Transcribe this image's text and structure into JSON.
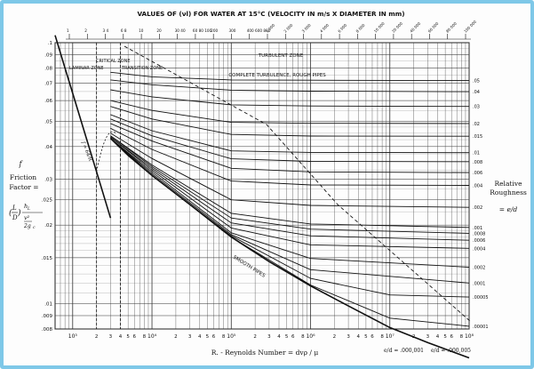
{
  "chart_data": {
    "type": "line",
    "title": "VALUES OF (νl) FOR WATER AT 15°C (VELOCITY IN m/s X DIAMETER IN mm)",
    "top_ticks": [
      "1",
      "2",
      "3 4",
      "6 8",
      "10",
      "20",
      "30 40",
      "60 80 100",
      "200",
      "300",
      "400 600 800",
      "1 000",
      "2 000",
      "3 000",
      "4 000",
      "6 000",
      "8 000",
      "10 000",
      "20 000",
      "40 000",
      "60 000",
      "80 000",
      "100 000"
    ],
    "xlabel": "R. - Reynolds Number = dvρ / μ",
    "x_scale": "log",
    "xlim": [
      600,
      100000000
    ],
    "y_scale": "log",
    "ylim": [
      0.008,
      0.1
    ],
    "y_ticks": [
      ".1",
      ".09",
      ".08",
      ".07",
      ".06",
      ".05",
      ".04",
      ".03",
      ".025",
      ".02",
      ".015",
      ".01",
      ".009",
      ".008"
    ],
    "x_tick_labels": [
      "10³",
      "2",
      "3",
      "4",
      "5",
      "6",
      "8",
      "10⁴",
      "2",
      "3",
      "4",
      "5",
      "6",
      "8",
      "10⁵",
      "2",
      "3",
      "4",
      "5",
      "6",
      "8",
      "10⁶",
      "2",
      "3",
      "4",
      "5",
      "6",
      "8",
      "10⁷",
      "2",
      "3",
      "4",
      "5",
      "6",
      "8",
      "10⁸"
    ],
    "ylabel_left": [
      "f",
      "Friction",
      "Factor ="
    ],
    "ylabel_right": [
      "Relative",
      "Roughness",
      "= e/d"
    ],
    "right_ticks": [
      ".05",
      ".04",
      ".03",
      ".02",
      ".015",
      ".01",
      ".008",
      ".006",
      ".004",
      ".002",
      ".001",
      ".0008",
      ".0006",
      ".0004",
      ".0002",
      ".0001",
      ".00005",
      ".00001"
    ],
    "zones": [
      "LAMINAR ZONE",
      "CRITICAL ZONE",
      "TRANSITION ZONE",
      "TURBULENT ZONE",
      "COMPLETE TURBULENCE, ROUGH PIPES"
    ],
    "curve_labels": [
      "SMOOTH PIPES",
      "f = 64/R"
    ],
    "bottom_annotations": [
      "e/d = .000,001",
      "e/d = .000,005"
    ],
    "series": [
      {
        "name": "f = 64/R",
        "x": [
          600,
          800,
          1000,
          1500,
          2000,
          2500,
          3000
        ],
        "y": [
          0.1067,
          0.08,
          0.064,
          0.0427,
          0.032,
          0.0256,
          0.0213
        ]
      },
      {
        "name": "SMOOTH PIPES",
        "x": [
          3000,
          5000,
          10000,
          30000,
          100000,
          300000,
          1000000,
          3000000,
          10000000,
          30000000,
          100000000
        ],
        "y": [
          0.043,
          0.037,
          0.031,
          0.024,
          0.018,
          0.0145,
          0.0117,
          0.0098,
          0.0081,
          0.0071,
          0.0062
        ]
      },
      {
        "name": ".05",
        "x": [
          3000,
          10000,
          100000,
          1000000,
          100000000
        ],
        "y": [
          0.077,
          0.074,
          0.072,
          0.0718,
          0.0716
        ]
      },
      {
        "name": ".04",
        "x": [
          3000,
          10000,
          100000,
          1000000,
          100000000
        ],
        "y": [
          0.072,
          0.069,
          0.0658,
          0.0652,
          0.0649
        ]
      },
      {
        "name": ".03",
        "x": [
          3000,
          10000,
          100000,
          1000000,
          100000000
        ],
        "y": [
          0.066,
          0.062,
          0.0578,
          0.0572,
          0.057
        ]
      },
      {
        "name": ".02",
        "x": [
          3000,
          10000,
          100000,
          1000000,
          100000000
        ],
        "y": [
          0.06,
          0.055,
          0.0495,
          0.0491,
          0.049
        ]
      },
      {
        "name": ".015",
        "x": [
          3000,
          10000,
          100000,
          1000000,
          100000000
        ],
        "y": [
          0.057,
          0.051,
          0.0445,
          0.0439,
          0.0438
        ]
      },
      {
        "name": ".01",
        "x": [
          3000,
          10000,
          100000,
          1000000,
          100000000
        ],
        "y": [
          0.053,
          0.046,
          0.0385,
          0.038,
          0.0379
        ]
      },
      {
        "name": ".008",
        "x": [
          3000,
          10000,
          100000,
          1000000,
          100000000
        ],
        "y": [
          0.051,
          0.044,
          0.0359,
          0.0351,
          0.035
        ]
      },
      {
        "name": ".006",
        "x": [
          3000,
          10000,
          100000,
          1000000,
          100000000
        ],
        "y": [
          0.049,
          0.042,
          0.033,
          0.032,
          0.0318
        ]
      },
      {
        "name": ".004",
        "x": [
          3000,
          10000,
          100000,
          1000000,
          100000000
        ],
        "y": [
          0.047,
          0.039,
          0.0295,
          0.0285,
          0.0284
        ]
      },
      {
        "name": ".002",
        "x": [
          3000,
          10000,
          100000,
          1000000,
          100000000
        ],
        "y": [
          0.045,
          0.036,
          0.025,
          0.0238,
          0.0234
        ]
      },
      {
        "name": ".001",
        "x": [
          3000,
          10000,
          100000,
          1000000,
          100000000
        ],
        "y": [
          0.044,
          0.034,
          0.0222,
          0.0202,
          0.0196
        ]
      },
      {
        "name": ".0008",
        "x": [
          3000,
          10000,
          100000,
          1000000,
          100000000
        ],
        "y": [
          0.044,
          0.0335,
          0.0213,
          0.0193,
          0.0186
        ]
      },
      {
        "name": ".0006",
        "x": [
          3000,
          10000,
          100000,
          1000000,
          100000000
        ],
        "y": [
          0.0435,
          0.033,
          0.0204,
          0.0182,
          0.0175
        ]
      },
      {
        "name": ".0004",
        "x": [
          3000,
          10000,
          100000,
          1000000,
          100000000
        ],
        "y": [
          0.0435,
          0.0325,
          0.0195,
          0.0168,
          0.0163
        ]
      },
      {
        "name": ".0002",
        "x": [
          3000,
          10000,
          100000,
          1000000,
          100000000
        ],
        "y": [
          0.043,
          0.032,
          0.0187,
          0.0149,
          0.0138
        ]
      },
      {
        "name": ".0001",
        "x": [
          3000,
          10000,
          100000,
          1000000,
          100000000
        ],
        "y": [
          0.043,
          0.0315,
          0.0184,
          0.0135,
          0.012
        ]
      },
      {
        "name": ".00005",
        "x": [
          3000,
          10000,
          100000,
          1000000,
          10000000,
          100000000
        ],
        "y": [
          0.043,
          0.031,
          0.0182,
          0.0125,
          0.0108,
          0.0106
        ]
      },
      {
        "name": ".00001",
        "x": [
          3000,
          10000,
          100000,
          1000000,
          10000000,
          100000000
        ],
        "y": [
          0.043,
          0.031,
          0.018,
          0.0118,
          0.0088,
          0.0082
        ]
      }
    ],
    "grid": true,
    "legend": "none"
  }
}
